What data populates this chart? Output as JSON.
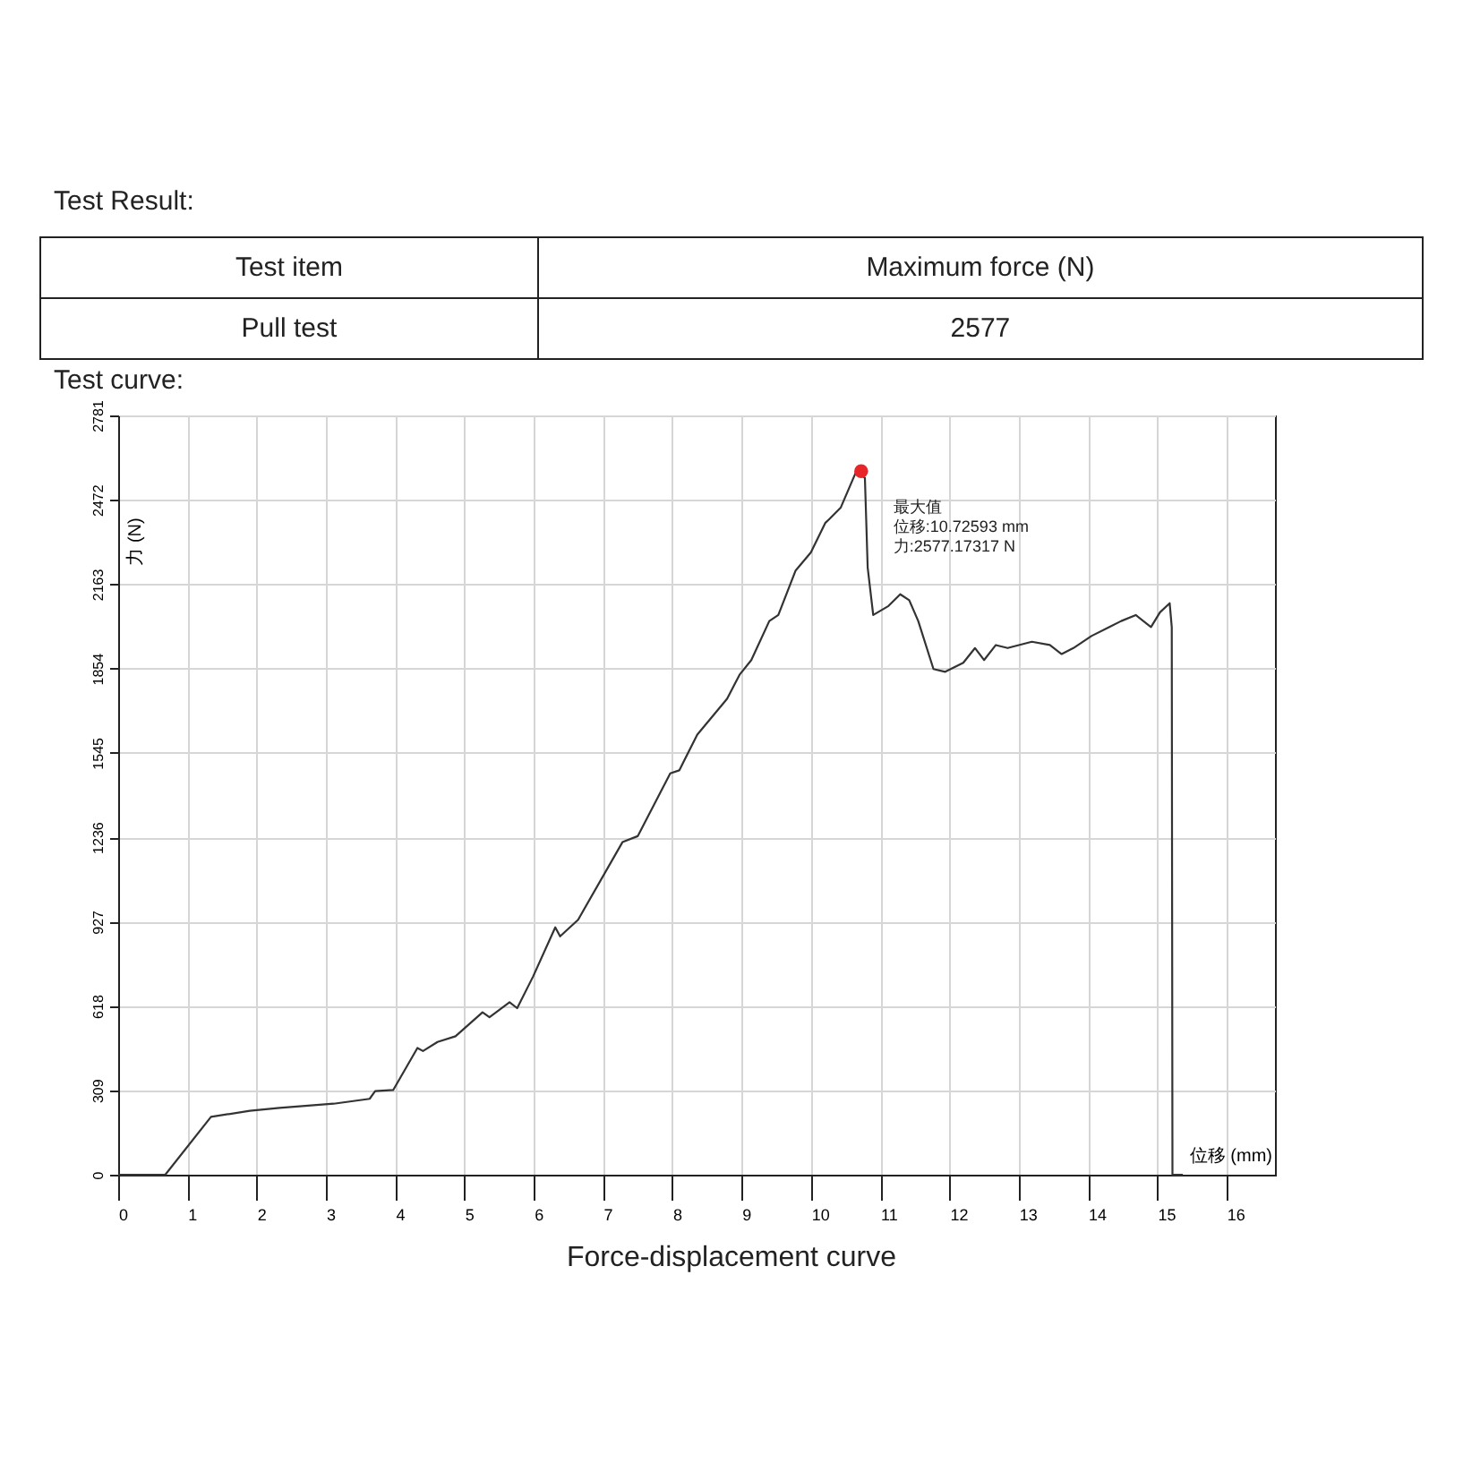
{
  "chart_data": {
    "type": "line",
    "title": "Test curve:",
    "xlabel": "位移 (mm)",
    "ylabel": "力 (N)",
    "xlim": [
      0,
      16.7
    ],
    "ylim": [
      0,
      2781
    ],
    "xticks": [
      0,
      1,
      2,
      3,
      4,
      5,
      6,
      7,
      8,
      9,
      10,
      11,
      12,
      13,
      14,
      15,
      16
    ],
    "yticks": [
      0,
      309,
      618,
      927,
      1236,
      1545,
      1854,
      2163,
      2472,
      2781
    ],
    "grid": true,
    "annotations": [
      "Test Result:",
      "Test item",
      "Maximum force (N)",
      "Pull test",
      "2577",
      {
        "text": "最大值",
        "x": 10.72593,
        "y": 2577.17317
      },
      "位移:10.72593 mm",
      "力:2577.17317 N",
      "Force-displacement curve"
    ],
    "series": [
      {
        "color": "#333333",
        "x": [
          0,
          0.68,
          1.34,
          1.9,
          2.33,
          3.11,
          3.63,
          3.71,
          3.97,
          4.32,
          4.4,
          4.61,
          4.87,
          5.26,
          5.36,
          5.65,
          5.76,
          5.99,
          6.31,
          6.38,
          6.64,
          7.28,
          7.5,
          7.97,
          8.1,
          8.36,
          8.79,
          8.97,
          9.14,
          9.4,
          9.53,
          9.78,
          10.0,
          10.21,
          10.26,
          10.43,
          10.66,
          10.78,
          10.82,
          10.9,
          11.12,
          11.29,
          11.42,
          11.55,
          11.77,
          11.94,
          12.2,
          12.37,
          12.5,
          12.67,
          12.84,
          13.19,
          13.45,
          13.62,
          13.79,
          14.05,
          14.31,
          14.48,
          14.69,
          14.91,
          15.04,
          15.18,
          15.21,
          15.22,
          15.37
        ],
        "values": [
          0,
          0,
          212,
          234,
          245,
          260,
          278,
          306,
          310,
          464,
          453,
          486,
          507,
          595,
          577,
          632,
          610,
          726,
          906,
          873,
          934,
          1218,
          1240,
          1470,
          1481,
          1612,
          1743,
          1831,
          1885,
          2028,
          2050,
          2213,
          2279,
          2388,
          2400,
          2443,
          2579,
          2552,
          2224,
          2050,
          2083,
          2126,
          2104,
          2028,
          1852,
          1842,
          1875,
          1929,
          1885,
          1940,
          1929,
          1952,
          1940,
          1907,
          1929,
          1973,
          2006,
          2028,
          2050,
          2006,
          2060,
          2093,
          2006,
          0,
          0
        ]
      },
      {
        "type": "scatter",
        "color": "#e8262a",
        "x": [
          10.72593
        ],
        "values": [
          2577.17317
        ]
      }
    ]
  }
}
